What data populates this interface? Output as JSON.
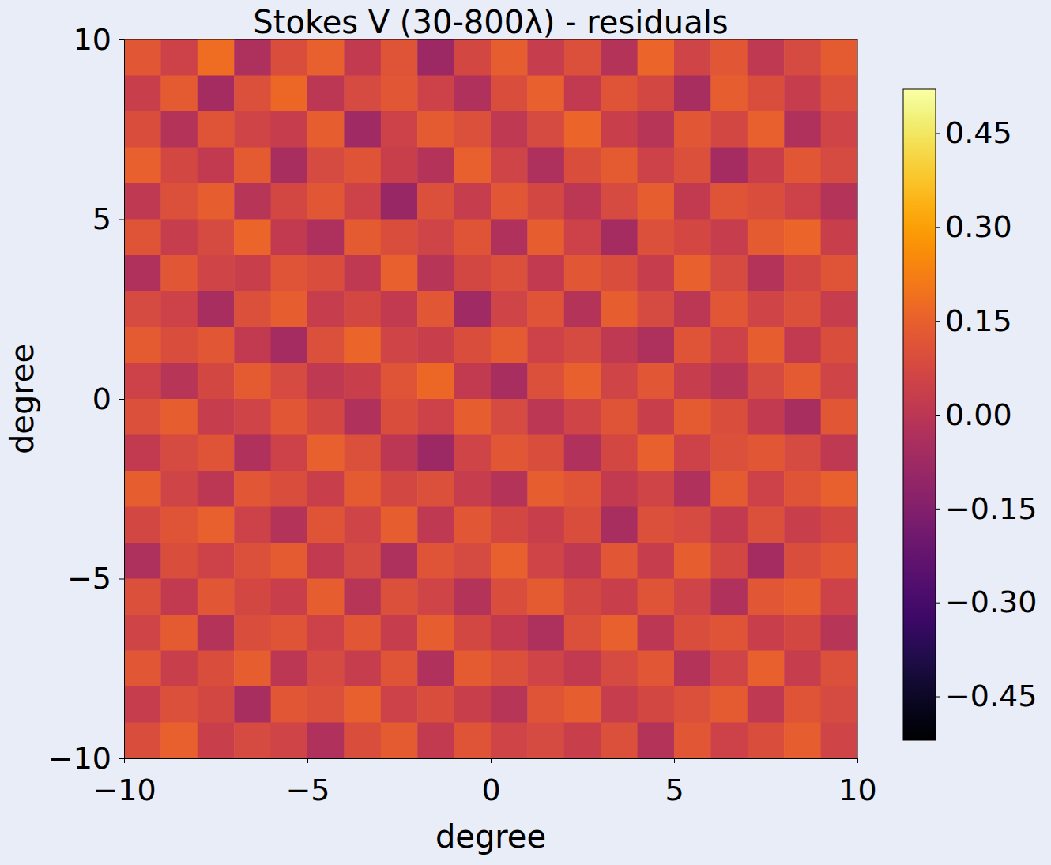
{
  "chart_data": {
    "type": "heatmap",
    "title": "Stokes V (30-800λ) - residuals",
    "x_label": "degree",
    "y_label": "degree",
    "xlim": [
      -10,
      10
    ],
    "ylim": [
      -10,
      10
    ],
    "xticks": [
      {
        "value": -10,
        "label": "−10"
      },
      {
        "value": -5,
        "label": "−5"
      },
      0,
      5,
      10
    ],
    "yticks": [
      {
        "value": -10,
        "label": "−10"
      },
      {
        "value": -5,
        "label": "−5"
      },
      0,
      5,
      10
    ],
    "x": [
      -10,
      -9,
      -8,
      -7,
      -6,
      -5,
      -4,
      -3,
      -2,
      -1,
      0,
      1,
      2,
      3,
      4,
      5,
      6,
      7,
      8,
      9,
      10
    ],
    "y": [
      10,
      9,
      8,
      7,
      6,
      5,
      4,
      3,
      2,
      1,
      0,
      -1,
      -2,
      -3,
      -4,
      -5,
      -6,
      -7,
      -8,
      -9,
      -10
    ],
    "z": [
      [
        0.12,
        0.05,
        0.18,
        -0.04,
        0.09,
        0.15,
        0.02,
        0.11,
        -0.08,
        0.07,
        0.14,
        0.03,
        0.1,
        -0.02,
        0.16,
        0.06,
        0.12,
        0.01,
        0.08,
        0.13
      ],
      [
        0.04,
        0.13,
        -0.06,
        0.1,
        0.17,
        0.0,
        0.08,
        0.12,
        0.05,
        -0.03,
        0.09,
        0.15,
        0.02,
        0.11,
        0.07,
        -0.05,
        0.14,
        0.09,
        0.03,
        0.1
      ],
      [
        0.09,
        -0.02,
        0.11,
        0.06,
        0.03,
        0.14,
        -0.07,
        0.05,
        0.13,
        0.1,
        0.01,
        0.08,
        0.16,
        0.04,
        -0.01,
        0.12,
        0.07,
        0.15,
        -0.03,
        0.06
      ],
      [
        0.15,
        0.07,
        0.02,
        0.13,
        -0.05,
        0.08,
        0.11,
        0.04,
        -0.02,
        0.15,
        0.06,
        -0.04,
        0.09,
        0.13,
        0.05,
        0.1,
        -0.06,
        0.04,
        0.12,
        0.08
      ],
      [
        0.01,
        0.1,
        0.14,
        -0.01,
        0.07,
        0.12,
        0.05,
        -0.09,
        0.1,
        0.03,
        0.12,
        0.07,
        0.0,
        0.08,
        0.14,
        0.02,
        0.11,
        0.09,
        0.05,
        -0.02
      ],
      [
        0.11,
        0.03,
        0.08,
        0.16,
        0.02,
        -0.04,
        0.13,
        0.09,
        0.06,
        0.11,
        -0.03,
        0.14,
        0.05,
        -0.06,
        0.1,
        0.07,
        0.03,
        0.13,
        0.16,
        0.04
      ],
      [
        -0.03,
        0.12,
        0.06,
        0.04,
        0.11,
        0.09,
        0.01,
        0.15,
        -0.01,
        0.07,
        0.1,
        0.02,
        0.12,
        0.09,
        0.03,
        0.15,
        0.08,
        -0.02,
        0.07,
        0.11
      ],
      [
        0.08,
        0.05,
        -0.05,
        0.1,
        0.14,
        0.03,
        0.07,
        0.02,
        0.12,
        -0.07,
        0.06,
        0.11,
        -0.02,
        0.14,
        0.08,
        0.0,
        0.12,
        0.06,
        0.1,
        0.03
      ],
      [
        0.13,
        0.09,
        0.12,
        0.02,
        -0.06,
        0.1,
        0.16,
        0.06,
        0.04,
        0.09,
        0.13,
        0.05,
        0.08,
        0.01,
        -0.04,
        0.11,
        0.05,
        0.14,
        0.02,
        0.09
      ],
      [
        0.05,
        -0.01,
        0.07,
        0.13,
        0.08,
        0.01,
        0.04,
        0.11,
        0.17,
        0.02,
        -0.05,
        0.1,
        0.15,
        0.06,
        0.12,
        0.03,
        -0.01,
        0.08,
        0.13,
        0.06
      ],
      [
        0.1,
        0.14,
        0.03,
        0.06,
        0.12,
        0.07,
        -0.03,
        0.09,
        0.05,
        0.14,
        0.08,
        0.0,
        0.06,
        0.11,
        0.04,
        0.13,
        0.09,
        0.02,
        -0.05,
        0.12
      ],
      [
        0.02,
        0.08,
        0.11,
        -0.03,
        0.05,
        0.15,
        0.1,
        0.0,
        -0.08,
        0.06,
        0.12,
        0.09,
        -0.03,
        0.07,
        0.15,
        0.05,
        0.1,
        0.12,
        0.08,
        0.01
      ],
      [
        0.14,
        0.06,
        0.0,
        0.12,
        0.09,
        0.04,
        0.13,
        0.07,
        0.1,
        0.03,
        -0.02,
        0.14,
        0.11,
        0.02,
        0.06,
        -0.03,
        0.13,
        0.05,
        0.11,
        0.15
      ],
      [
        0.07,
        0.11,
        0.15,
        0.05,
        -0.02,
        0.11,
        0.06,
        0.14,
        0.01,
        0.12,
        0.07,
        0.04,
        0.09,
        -0.05,
        0.1,
        0.08,
        0.02,
        0.1,
        0.04,
        0.07
      ],
      [
        -0.04,
        0.09,
        0.05,
        0.1,
        0.13,
        0.02,
        0.08,
        -0.04,
        0.11,
        0.08,
        0.15,
        0.06,
        0.01,
        0.12,
        0.03,
        0.14,
        0.07,
        -0.06,
        0.09,
        0.12
      ],
      [
        0.1,
        0.02,
        0.12,
        0.07,
        0.04,
        0.14,
        -0.01,
        0.1,
        0.06,
        -0.02,
        0.09,
        0.13,
        0.07,
        0.04,
        0.11,
        0.06,
        -0.03,
        0.12,
        0.14,
        0.05
      ],
      [
        0.06,
        0.13,
        -0.02,
        0.09,
        0.11,
        0.05,
        0.12,
        0.03,
        0.14,
        0.07,
        0.02,
        -0.04,
        0.1,
        0.15,
        0.0,
        0.09,
        0.11,
        0.04,
        0.07,
        -0.01
      ],
      [
        0.12,
        0.04,
        0.09,
        0.14,
        0.0,
        0.08,
        0.03,
        0.11,
        -0.03,
        0.13,
        0.1,
        0.06,
        0.02,
        0.08,
        0.12,
        -0.02,
        0.06,
        0.15,
        0.03,
        0.1
      ],
      [
        0.03,
        0.1,
        0.07,
        -0.05,
        0.12,
        0.1,
        0.15,
        0.05,
        0.09,
        0.04,
        -0.01,
        0.11,
        0.14,
        0.03,
        0.07,
        0.1,
        0.13,
        0.01,
        0.11,
        0.08
      ],
      [
        0.09,
        0.15,
        0.04,
        0.08,
        0.06,
        -0.03,
        0.09,
        0.13,
        0.02,
        0.11,
        0.06,
        0.08,
        0.04,
        0.1,
        -0.02,
        0.12,
        0.05,
        0.09,
        0.14,
        0.06
      ]
    ],
    "colorbar": {
      "range": [
        -0.52,
        0.52
      ],
      "ticks": [
        {
          "value": -0.45,
          "label": "−0.45"
        },
        {
          "value": -0.3,
          "label": "−0.30"
        },
        {
          "value": -0.15,
          "label": "−0.15"
        },
        {
          "value": 0,
          "label": "0.00"
        },
        {
          "value": 0.15,
          "label": "0.15"
        },
        {
          "value": 0.3,
          "label": "0.30"
        },
        0.45
      ]
    }
  }
}
